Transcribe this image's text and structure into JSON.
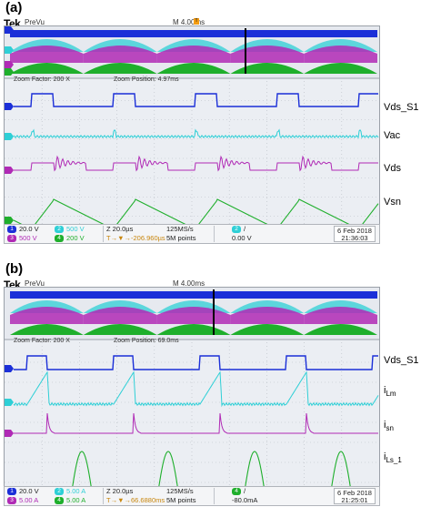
{
  "panels": [
    {
      "label": "(a)",
      "brand": "Tek",
      "mode": "PreVu",
      "timebase": "M 4.00ms",
      "zoom_factor": "Zoom Factor: 200 X",
      "zoom_position": "Zoom Position: 4.97ms",
      "signals": [
        "Vds_S1",
        "Vac",
        "Vds",
        "Vsn"
      ],
      "status": {
        "ch1": "20.0 V",
        "ch2": "500 V",
        "ch3": "500 V",
        "ch4": "200 V",
        "horiz": "Z 20.0µs",
        "rate": "125MS/s",
        "trig_pos": "T→▼→-206.960µs",
        "points": "5M points",
        "trig_ch": "2",
        "trig_slope": "/",
        "trig_level": "0.00 V",
        "date": "6 Feb 2018",
        "time": "21:36:03"
      }
    },
    {
      "label": "(b)",
      "brand": "Tek",
      "mode": "PreVu",
      "timebase": "M 4.00ms",
      "zoom_factor": "Zoom Factor: 200 X",
      "zoom_position": "Zoom Position: 69.0ms",
      "signals": [
        "Vds_S1",
        "iLm",
        "isn",
        "iLs_1"
      ],
      "status": {
        "ch1": "20.0 V",
        "ch2": "5.00 A",
        "ch3": "5.00 A",
        "ch4": "5.00 A",
        "horiz": "Z 20.0µs",
        "rate": "125MS/s",
        "trig_pos": "T→▼→66.6880ms",
        "points": "5M points",
        "trig_ch": "4",
        "trig_slope": "/",
        "trig_level": "-80.0mA",
        "date": "6 Feb 2018",
        "time": "21:25:01"
      }
    }
  ],
  "colors": {
    "ch1": "#1b2fd8",
    "ch2": "#2ecfd6",
    "ch3": "#b02ab5",
    "ch4": "#1faf2c",
    "trigger": "#f39c12"
  }
}
